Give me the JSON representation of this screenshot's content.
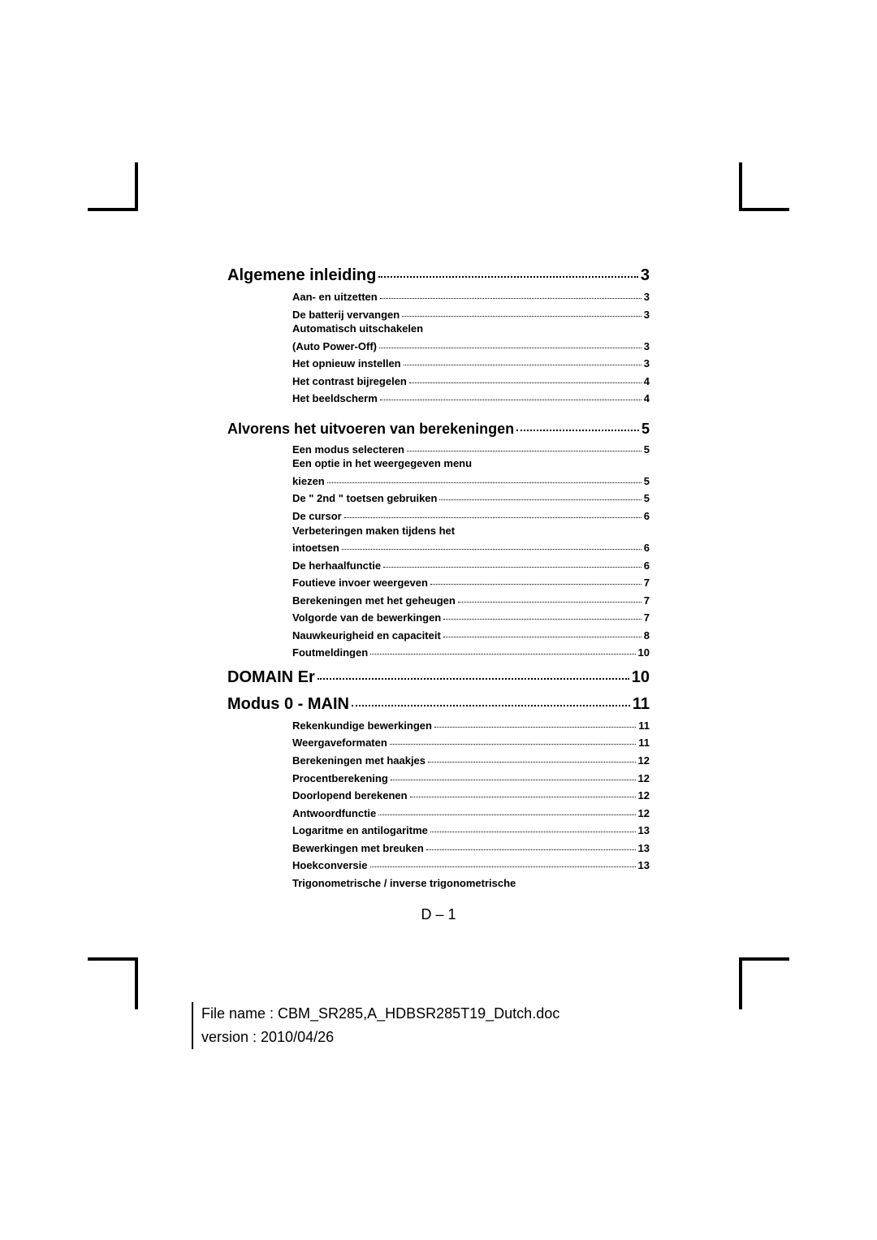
{
  "toc": {
    "sections": [
      {
        "level": 1,
        "title": "Algemene inleiding",
        "page": "3",
        "subs": [
          {
            "title": "Aan- en uitzetten",
            "page": "3"
          },
          {
            "title": "De batterij vervangen",
            "page": "3"
          },
          {
            "title": "Automatisch uitschakelen",
            "cont": "(Auto Power-Off)",
            "page": "3"
          },
          {
            "title": "Het opnieuw instellen",
            "page": "3"
          },
          {
            "title": "Het contrast bijregelen",
            "page": "4"
          },
          {
            "title": "Het beeldscherm",
            "page": "4"
          }
        ]
      },
      {
        "level": 2,
        "title": "Alvorens het uitvoeren van berekeningen",
        "page": "5",
        "subs": [
          {
            "title": "Een modus selecteren",
            "page": "5"
          },
          {
            "title": "Een optie in het weergegeven menu",
            "cont": "kiezen",
            "page": "5"
          },
          {
            "title": "De \" 2nd \" toetsen gebruiken",
            "page": "5"
          },
          {
            "title": "De cursor",
            "page": "6"
          },
          {
            "title": "Verbeteringen maken tijdens het",
            "cont": "intoetsen",
            "page": "6"
          },
          {
            "title": "De herhaalfunctie",
            "page": "6"
          },
          {
            "title": "Foutieve invoer weergeven",
            "page": "7"
          },
          {
            "title": "Berekeningen met het geheugen",
            "page": "7"
          },
          {
            "title": "Volgorde van de bewerkingen",
            "page": "7"
          },
          {
            "title": "Nauwkeurigheid en capaciteit",
            "page": "8"
          },
          {
            "title": "Foutmeldingen",
            "page": "10"
          }
        ]
      },
      {
        "level": 1,
        "title": "DOMAIN Er",
        "page": "10",
        "subs": []
      },
      {
        "level": 1,
        "title": "Modus 0 - MAIN",
        "page": "11",
        "subs": [
          {
            "title": "Rekenkundige bewerkingen",
            "page": "11"
          },
          {
            "title": "Weergaveformaten",
            "page": "11"
          },
          {
            "title": "Berekeningen met haakjes",
            "page": "12"
          },
          {
            "title": "Procentberekening",
            "page": "12"
          },
          {
            "title": "Doorlopend berekenen",
            "page": "12"
          },
          {
            "title": "Antwoordfunctie",
            "page": "12"
          },
          {
            "title": "Logaritme en antilogaritme",
            "page": "13"
          },
          {
            "title": "Bewerkingen met breuken",
            "page": "13"
          },
          {
            "title": "Hoekconversie",
            "page": "13"
          },
          {
            "title": "Trigonometrische / inverse trigonometrische",
            "noleader": true
          }
        ]
      }
    ]
  },
  "footer_page": "D – 1",
  "meta": {
    "line1": "File name : CBM_SR285,A_HDBSR285T19_Dutch.doc",
    "line2": "version : 2010/04/26"
  }
}
